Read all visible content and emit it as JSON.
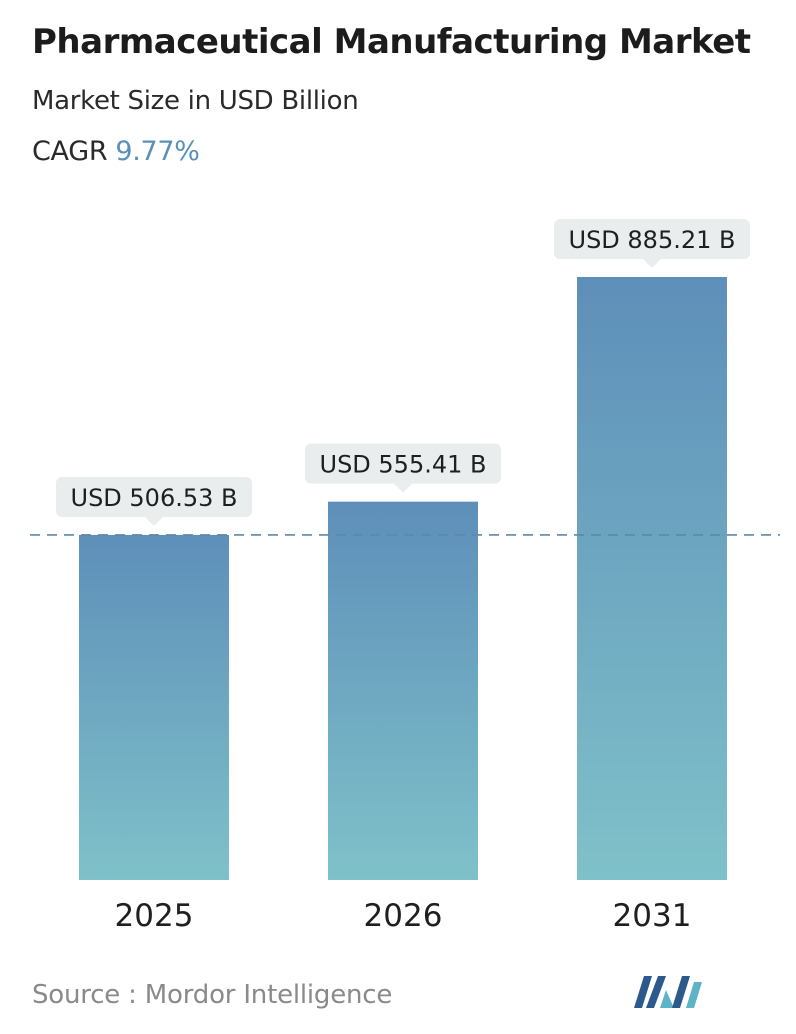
{
  "header": {
    "title": "Pharmaceutical Manufacturing Market",
    "subtitle": "Market Size in USD Billion",
    "cagr_label": "CAGR",
    "cagr_value": "9.77%"
  },
  "chart_data": {
    "type": "bar",
    "categories": [
      "2025",
      "2026",
      "2031"
    ],
    "values": [
      506.53,
      555.41,
      885.21
    ],
    "value_labels": [
      "USD 506.53 B",
      "USD 555.41 B",
      "USD 885.21 B"
    ],
    "reference_line": 506.53,
    "ylim": [
      0,
      1000
    ],
    "grid": false,
    "legend": "none"
  },
  "footer": {
    "source": "Source :  Mordor Intelligence",
    "logo": "mordor-intelligence-logo"
  },
  "colors": {
    "bar_top": "#5e8fb9",
    "bar_bottom": "#7fc1c9",
    "label_bg": "#e9eded",
    "dashed_line": "#5a8aa6",
    "cagr_value": "#5b8fb8",
    "logo_dark": "#2d5a8c",
    "logo_light": "#5fb3c6"
  }
}
